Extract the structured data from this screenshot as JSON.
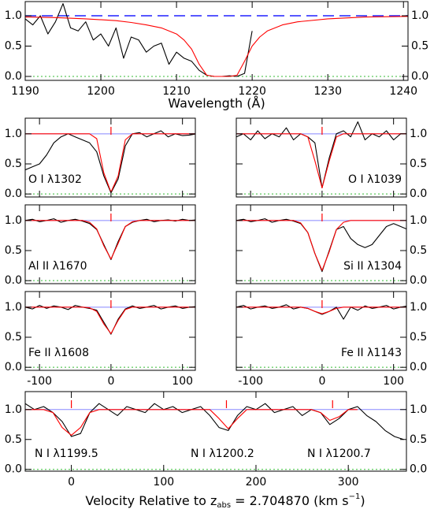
{
  "chart_data": [
    {
      "type": "line",
      "xlim": [
        1190,
        1240.6
      ],
      "ylim": [
        -0.065,
        1.234
      ],
      "xticks": [
        1190,
        1200,
        1210,
        1220,
        1230,
        1240
      ],
      "yticks": [
        {
          "value": 0,
          "label": "0.0"
        },
        {
          "value": 0.5,
          "label": "0.5"
        },
        {
          "value": 1,
          "label": "1.0"
        }
      ],
      "xlabel": "Wavelength (Å)",
      "series": [
        {
          "color": "#000000",
          "x": [
            1190,
            1191,
            1192,
            1193,
            1194,
            1195,
            1196,
            1197,
            1198,
            1199,
            1200,
            1201,
            1202,
            1203,
            1204,
            1205,
            1206,
            1207,
            1208,
            1209,
            1210,
            1211,
            1212,
            1213,
            1214,
            1215,
            1216,
            1217,
            1218,
            1219,
            1220
          ],
          "values": [
            0.95,
            0.85,
            1.0,
            0.7,
            0.9,
            1.2,
            0.8,
            0.75,
            0.9,
            0.6,
            0.7,
            0.5,
            0.8,
            0.3,
            0.65,
            0.6,
            0.4,
            0.5,
            0.55,
            0.2,
            0.4,
            0.3,
            0.25,
            0.1,
            0.02,
            0.0,
            0.0,
            0.01,
            0.0,
            0.05,
            0.75
          ]
        },
        {
          "color": "#ff0000",
          "x": [
            1190,
            1194,
            1198,
            1202,
            1204,
            1206,
            1208,
            1210,
            1211,
            1212,
            1213,
            1214,
            1215,
            1216,
            1217,
            1218,
            1219,
            1220,
            1221,
            1222,
            1224,
            1226,
            1230,
            1235,
            1240.6
          ],
          "values": [
            0.98,
            0.97,
            0.95,
            0.92,
            0.89,
            0.85,
            0.8,
            0.7,
            0.6,
            0.45,
            0.2,
            0.02,
            0,
            0,
            0,
            0.02,
            0.25,
            0.5,
            0.65,
            0.75,
            0.85,
            0.9,
            0.95,
            0.98,
            0.99
          ]
        }
      ],
      "hlines": [
        {
          "value": 1,
          "color": "#2020ff",
          "style": "dashed"
        },
        {
          "value": 0,
          "color": "#33bb33",
          "style": "dotted"
        }
      ]
    },
    {
      "type": "line",
      "label": "O I λ1302",
      "xlim": [
        -120,
        118
      ],
      "ylim": [
        -0.05,
        1.26
      ],
      "xticks": [
        -100,
        0,
        100
      ],
      "yticks": [
        {
          "value": 0,
          "label": "0.0"
        },
        {
          "value": 0.5,
          "label": "0.5"
        },
        {
          "value": 1,
          "label": "1.0"
        }
      ],
      "markers": [
        0
      ],
      "x": [
        -120,
        -110,
        -100,
        -90,
        -80,
        -70,
        -60,
        -50,
        -40,
        -30,
        -20,
        -10,
        0,
        10,
        20,
        30,
        40,
        50,
        60,
        70,
        80,
        90,
        100,
        110,
        120
      ],
      "series": [
        {
          "color": "#000000",
          "values": [
            0.4,
            0.45,
            0.5,
            0.65,
            0.85,
            0.95,
            1.0,
            0.95,
            0.9,
            0.85,
            0.7,
            0.3,
            0.02,
            0.25,
            0.8,
            1.0,
            1.02,
            0.95,
            1.0,
            1.05,
            0.95,
            1.0,
            0.97,
            0.98,
            1.0
          ]
        },
        {
          "color": "#ff0000",
          "values": [
            1,
            1,
            1,
            1,
            1,
            1,
            1,
            1,
            1,
            1,
            0.92,
            0.35,
            0.03,
            0.3,
            0.9,
            1,
            1,
            1,
            1,
            1,
            1,
            1,
            1,
            1,
            1
          ]
        }
      ],
      "hlines": [
        {
          "value": 1,
          "color": "#8888ff",
          "style": "solid"
        },
        {
          "value": 0,
          "color": "#33bb33",
          "style": "dotted"
        }
      ]
    },
    {
      "type": "line",
      "label": "O I λ1039",
      "xlim": [
        -120,
        118
      ],
      "ylim": [
        -0.05,
        1.26
      ],
      "xticks": [
        -100,
        0,
        100
      ],
      "yticks": [
        {
          "value": 0,
          "label": "0.0"
        },
        {
          "value": 0.5,
          "label": "0.5"
        },
        {
          "value": 1,
          "label": "1.0"
        }
      ],
      "markers": [
        0
      ],
      "x": [
        -120,
        -110,
        -100,
        -90,
        -80,
        -70,
        -60,
        -50,
        -40,
        -30,
        -20,
        -10,
        0,
        10,
        20,
        30,
        40,
        50,
        60,
        70,
        80,
        90,
        100,
        110,
        120
      ],
      "series": [
        {
          "color": "#000000",
          "values": [
            0.95,
            1.0,
            0.9,
            1.05,
            0.92,
            1.0,
            0.95,
            1.1,
            0.9,
            1.0,
            0.95,
            0.85,
            0.1,
            0.6,
            1.0,
            1.05,
            0.95,
            1.2,
            0.9,
            1.0,
            0.95,
            1.05,
            0.9,
            1.0,
            1.0
          ]
        },
        {
          "color": "#ff0000",
          "values": [
            1,
            1,
            1,
            1,
            1,
            1,
            1,
            1,
            1,
            1,
            0.95,
            0.55,
            0.1,
            0.55,
            0.95,
            1,
            1,
            1,
            1,
            1,
            1,
            1,
            1,
            1,
            1
          ]
        }
      ],
      "hlines": [
        {
          "value": 1,
          "color": "#8888ff",
          "style": "solid"
        },
        {
          "value": 0,
          "color": "#33bb33",
          "style": "dotted"
        }
      ]
    },
    {
      "type": "line",
      "label": "Al II λ1670",
      "xlim": [
        -120,
        118
      ],
      "ylim": [
        -0.05,
        1.26
      ],
      "xticks": [
        -100,
        0,
        100
      ],
      "yticks": [
        {
          "value": 0,
          "label": "0.0"
        },
        {
          "value": 0.5,
          "label": "0.5"
        },
        {
          "value": 1,
          "label": "1.0"
        }
      ],
      "markers": [
        0
      ],
      "x": [
        -120,
        -110,
        -100,
        -90,
        -80,
        -70,
        -60,
        -50,
        -40,
        -30,
        -20,
        -10,
        0,
        10,
        20,
        30,
        40,
        50,
        60,
        70,
        80,
        90,
        100,
        110,
        120
      ],
      "series": [
        {
          "color": "#000000",
          "values": [
            1.0,
            1.02,
            0.98,
            1.0,
            1.03,
            0.97,
            1.0,
            1.02,
            0.99,
            0.95,
            0.85,
            0.6,
            0.35,
            0.65,
            0.9,
            0.97,
            1.0,
            1.02,
            0.98,
            1.0,
            1.01,
            0.99,
            1.02,
            1.0,
            1.01
          ]
        },
        {
          "color": "#ff0000",
          "values": [
            1,
            1,
            1,
            1,
            1,
            1,
            1,
            1,
            1,
            0.97,
            0.86,
            0.58,
            0.36,
            0.62,
            0.9,
            0.98,
            1,
            1,
            1,
            1,
            1,
            1,
            1,
            1,
            1
          ]
        }
      ],
      "hlines": [
        {
          "value": 1,
          "color": "#8888ff",
          "style": "solid"
        },
        {
          "value": 0,
          "color": "#33bb33",
          "style": "dotted"
        }
      ]
    },
    {
      "type": "line",
      "label": "Si II λ1304",
      "xlim": [
        -120,
        118
      ],
      "ylim": [
        -0.05,
        1.26
      ],
      "xticks": [
        -100,
        0,
        100
      ],
      "yticks": [
        {
          "value": 0,
          "label": "0.0"
        },
        {
          "value": 0.5,
          "label": "0.5"
        },
        {
          "value": 1,
          "label": "1.0"
        }
      ],
      "markers": [
        0
      ],
      "x": [
        -120,
        -110,
        -100,
        -90,
        -80,
        -70,
        -60,
        -50,
        -40,
        -30,
        -20,
        -10,
        0,
        10,
        20,
        30,
        40,
        50,
        60,
        70,
        80,
        90,
        100,
        110,
        120
      ],
      "series": [
        {
          "color": "#000000",
          "values": [
            1.0,
            1.02,
            0.98,
            1.0,
            1.03,
            0.97,
            1.0,
            1.02,
            0.99,
            0.95,
            0.8,
            0.45,
            0.15,
            0.5,
            0.85,
            0.9,
            0.7,
            0.6,
            0.55,
            0.6,
            0.75,
            0.9,
            0.95,
            0.9,
            0.85
          ]
        },
        {
          "color": "#ff0000",
          "values": [
            1,
            1,
            1,
            1,
            1,
            1,
            1,
            1,
            1,
            0.96,
            0.8,
            0.45,
            0.17,
            0.48,
            0.85,
            0.97,
            1,
            1,
            1,
            1,
            1,
            1,
            1,
            1,
            1
          ]
        }
      ],
      "hlines": [
        {
          "value": 1,
          "color": "#8888ff",
          "style": "solid"
        },
        {
          "value": 0,
          "color": "#33bb33",
          "style": "dotted"
        }
      ]
    },
    {
      "type": "line",
      "label": "Fe II λ1608",
      "xlim": [
        -120,
        118
      ],
      "ylim": [
        -0.05,
        1.26
      ],
      "xticks": [
        -100,
        0,
        100
      ],
      "yticks": [
        {
          "value": 0,
          "label": "0.0"
        },
        {
          "value": 0.5,
          "label": "0.5"
        },
        {
          "value": 1,
          "label": "1.0"
        }
      ],
      "markers": [
        0
      ],
      "x": [
        -120,
        -110,
        -100,
        -90,
        -80,
        -70,
        -60,
        -50,
        -40,
        -30,
        -20,
        -10,
        0,
        10,
        20,
        30,
        40,
        50,
        60,
        70,
        80,
        90,
        100,
        110,
        120
      ],
      "series": [
        {
          "color": "#000000",
          "values": [
            1.0,
            0.97,
            1.03,
            0.98,
            1.02,
            1.0,
            0.96,
            1.03,
            1.0,
            0.98,
            0.95,
            0.75,
            0.55,
            0.8,
            0.97,
            1.02,
            0.98,
            1.0,
            1.03,
            0.97,
            1.0,
            1.02,
            0.98,
            1.0,
            1.01
          ]
        },
        {
          "color": "#ff0000",
          "values": [
            1,
            1,
            1,
            1,
            1,
            1,
            1,
            1,
            1,
            0.99,
            0.93,
            0.72,
            0.56,
            0.78,
            0.96,
            1,
            1,
            1,
            1,
            1,
            1,
            1,
            1,
            1,
            1
          ]
        }
      ],
      "hlines": [
        {
          "value": 1,
          "color": "#8888ff",
          "style": "solid"
        },
        {
          "value": 0,
          "color": "#33bb33",
          "style": "dotted"
        }
      ]
    },
    {
      "type": "line",
      "label": "Fe II λ1143",
      "xlim": [
        -120,
        118
      ],
      "ylim": [
        -0.05,
        1.26
      ],
      "xticks": [
        -100,
        0,
        100
      ],
      "yticks": [
        {
          "value": 0,
          "label": "0.0"
        },
        {
          "value": 0.5,
          "label": "0.5"
        },
        {
          "value": 1,
          "label": "1.0"
        }
      ],
      "markers": [
        0
      ],
      "x": [
        -120,
        -110,
        -100,
        -90,
        -80,
        -70,
        -60,
        -50,
        -40,
        -30,
        -20,
        -10,
        0,
        10,
        20,
        30,
        40,
        50,
        60,
        70,
        80,
        90,
        100,
        110,
        120
      ],
      "series": [
        {
          "color": "#000000",
          "values": [
            1.0,
            1.03,
            0.97,
            1.0,
            1.02,
            0.98,
            1.0,
            1.04,
            0.97,
            1.0,
            0.98,
            0.93,
            0.88,
            0.93,
            1.0,
            0.8,
            1.0,
            0.95,
            1.02,
            0.98,
            1.0,
            1.03,
            0.97,
            1.0,
            1.02
          ]
        },
        {
          "color": "#ff0000",
          "values": [
            1,
            1,
            1,
            1,
            1,
            1,
            1,
            1,
            1,
            1,
            0.98,
            0.93,
            0.89,
            0.93,
            0.98,
            1,
            1,
            1,
            1,
            1,
            1,
            1,
            1,
            1,
            1
          ]
        }
      ],
      "hlines": [
        {
          "value": 1,
          "color": "#8888ff",
          "style": "solid"
        },
        {
          "value": 0,
          "color": "#33bb33",
          "style": "dotted"
        }
      ]
    },
    {
      "type": "line",
      "labels": [
        "N I λ1199.5",
        "N I λ1200.2",
        "N I λ1200.7"
      ],
      "xlim": [
        -50,
        363
      ],
      "ylim": [
        -0.03,
        1.3
      ],
      "xticks": [
        0,
        100,
        200,
        300
      ],
      "yticks": [
        {
          "value": 0,
          "label": "0.0"
        },
        {
          "value": 0.5,
          "label": "0.5"
        },
        {
          "value": 1,
          "label": "1.0"
        }
      ],
      "xlabel": [
        "Velocity Relative to z",
        "abs",
        " = 2.704870 (km s",
        "−1",
        ")"
      ],
      "markers": [
        0,
        168,
        283
      ],
      "x": [
        -50,
        -40,
        -30,
        -20,
        -10,
        0,
        10,
        20,
        30,
        40,
        50,
        60,
        70,
        80,
        90,
        100,
        110,
        120,
        130,
        140,
        150,
        160,
        170,
        180,
        190,
        200,
        210,
        220,
        230,
        240,
        250,
        260,
        270,
        280,
        290,
        300,
        310,
        320,
        330,
        340,
        350,
        360
      ],
      "series": [
        {
          "color": "#000000",
          "values": [
            1.1,
            1.0,
            1.05,
            0.95,
            0.8,
            0.55,
            0.6,
            0.95,
            1.1,
            1.0,
            0.9,
            1.05,
            1.0,
            0.95,
            1.1,
            1.0,
            1.05,
            0.95,
            1.0,
            1.05,
            0.9,
            0.7,
            0.65,
            0.9,
            1.05,
            1.0,
            1.1,
            0.95,
            1.0,
            1.05,
            0.9,
            1.0,
            0.95,
            0.75,
            0.85,
            1.0,
            1.05,
            0.9,
            0.8,
            0.65,
            0.55,
            0.5
          ]
        },
        {
          "color": "#ff0000",
          "values": [
            1,
            1,
            1,
            0.95,
            0.7,
            0.57,
            0.7,
            0.95,
            1,
            1,
            1,
            1,
            1,
            1,
            1,
            1,
            1,
            1,
            1,
            1,
            1,
            0.85,
            0.68,
            0.85,
            1,
            1,
            1,
            1,
            1,
            1,
            1,
            1,
            0.95,
            0.82,
            0.88,
            1,
            1,
            null,
            null,
            null,
            null,
            null
          ]
        }
      ],
      "hlines": [
        {
          "value": 1,
          "color": "#8888ff",
          "style": "solid"
        },
        {
          "value": 0,
          "color": "#33bb33",
          "style": "dotted"
        }
      ]
    }
  ]
}
